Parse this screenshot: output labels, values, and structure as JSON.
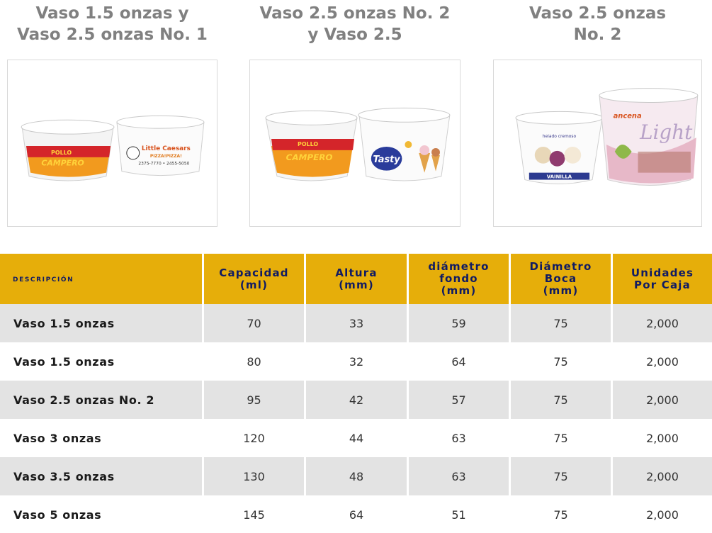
{
  "products": [
    {
      "title_line1": "Vaso 1.5 onzas y",
      "title_line2": "Vaso 2.5 onzas No. 1"
    },
    {
      "title_line1": "Vaso 2.5 onzas No. 2",
      "title_line2": "y Vaso 2.5"
    },
    {
      "title_line1": "Vaso 2.5 onzas",
      "title_line2": "No. 2"
    }
  ],
  "labels": {
    "pollo": "POLLO",
    "campero": "CAMPERO",
    "little_caesars": "Little Caesars",
    "pizza": "PIZZA!PIZZA!",
    "phone": "2375-7770 • 2455-5050",
    "tasty": "Tasty",
    "vainilla": "VAINILLA",
    "helado_cremoso": "helado cremoso",
    "light": "Light",
    "brand_light": "ancena"
  },
  "colors": {
    "header_bg": "#e6ae0a",
    "header_text": "#101b63",
    "row_shade": "#e3e3e3",
    "title_gray": "#808080"
  },
  "table": {
    "headers": [
      {
        "line1": "descripción"
      },
      {
        "line1": "Capacidad",
        "line2": "(ml)"
      },
      {
        "line1": "Altura",
        "line2": "(mm)"
      },
      {
        "line1": "diámetro",
        "line2": "fondo",
        "line3": "(mm)"
      },
      {
        "line1": "Diámetro",
        "line2": "Boca",
        "line3": "(mm)"
      },
      {
        "line1": "Unidades",
        "line2": "Por Caja"
      }
    ],
    "rows": [
      [
        "Vaso 1.5 onzas",
        "70",
        "33",
        "59",
        "75",
        "2,000"
      ],
      [
        "Vaso 1.5 onzas",
        "80",
        "32",
        "64",
        "75",
        "2,000"
      ],
      [
        "Vaso 2.5 onzas No. 2",
        "95",
        "42",
        "57",
        "75",
        "2,000"
      ],
      [
        "Vaso 3 onzas",
        "120",
        "44",
        "63",
        "75",
        "2,000"
      ],
      [
        "Vaso 3.5 onzas",
        "130",
        "48",
        "63",
        "75",
        "2,000"
      ],
      [
        "Vaso 5 onzas",
        "145",
        "64",
        "51",
        "75",
        "2,000"
      ]
    ]
  }
}
